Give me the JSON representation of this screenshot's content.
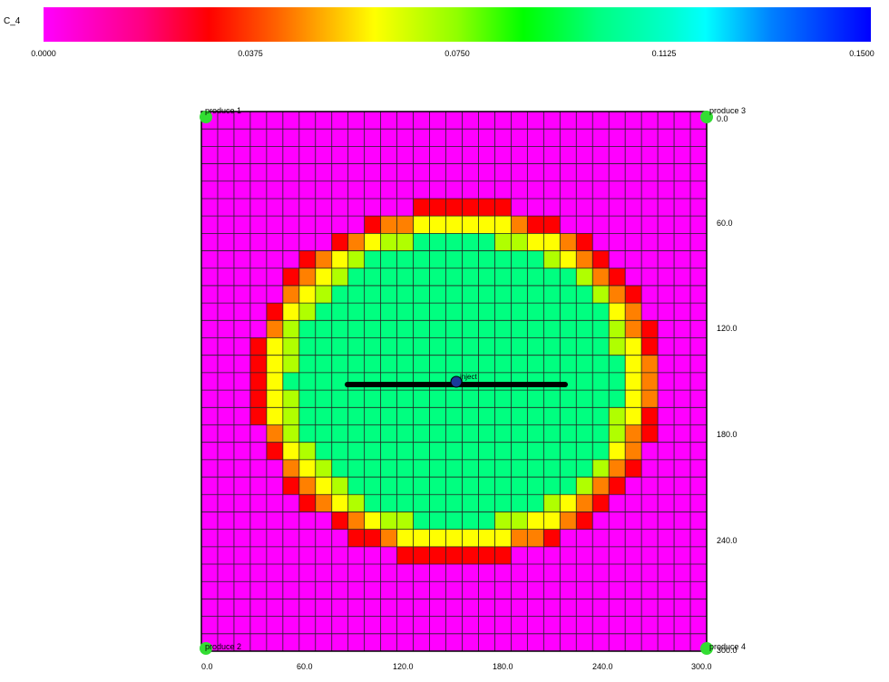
{
  "legend": {
    "title": "C_4",
    "ticks": [
      "0.0000",
      "0.0375",
      "0.0750",
      "0.1125",
      "0.1500"
    ],
    "colors": [
      "#ff00ff",
      "#ff0000",
      "#ff8000",
      "#ffff00",
      "#b0ff00",
      "#00ff80"
    ]
  },
  "axes": {
    "x_ticks": [
      "0.0",
      "60.0",
      "120.0",
      "180.0",
      "240.0",
      "300.0"
    ],
    "y_ticks": [
      "0.0",
      "60.0",
      "120.0",
      "180.0",
      "240.0",
      "300.0"
    ]
  },
  "grid": {
    "cells": 31,
    "background": "#ff00ff",
    "line_color": "#222222"
  },
  "wells": {
    "produce_1": "produce 1",
    "produce_2": "produce 2",
    "produce_3": "produce 3",
    "produce_4": "produce 4",
    "inject": "inject"
  }
}
